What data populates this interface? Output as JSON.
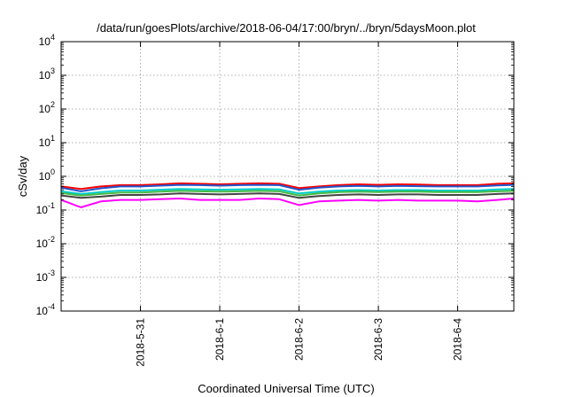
{
  "chart_data": {
    "type": "line",
    "title": "/data/run/goesPlots/archive/2018-06-04/17:00/bryn/../bryn/5daysMoon.plot",
    "xlabel": "Coordinated Universal Time (UTC)",
    "ylabel": "cSv/day",
    "y_scale": "log",
    "ylim": [
      0.0001,
      10000
    ],
    "y_ticks": [
      {
        "base": "10",
        "exp": "-4",
        "value": 0.0001
      },
      {
        "base": "10",
        "exp": "-3",
        "value": 0.001
      },
      {
        "base": "10",
        "exp": "-2",
        "value": 0.01
      },
      {
        "base": "10",
        "exp": "-1",
        "value": 0.1
      },
      {
        "base": "10",
        "exp": "0",
        "value": 1
      },
      {
        "base": "10",
        "exp": "1",
        "value": 10
      },
      {
        "base": "10",
        "exp": "2",
        "value": 100
      },
      {
        "base": "10",
        "exp": "3",
        "value": 1000
      },
      {
        "base": "10",
        "exp": "4",
        "value": 10000
      }
    ],
    "xlim": [
      "2018-05-30T00:00",
      "2018-06-04T17:00"
    ],
    "x_ticks": [
      "2018-5-31",
      "2018-6-1",
      "2018-6-2",
      "2018-6-3",
      "2018-6-4"
    ],
    "grid": true,
    "x": [
      "2018-05-30T00:00",
      "2018-05-30T06:00",
      "2018-05-30T12:00",
      "2018-05-30T18:00",
      "2018-05-31T00:00",
      "2018-05-31T06:00",
      "2018-05-31T12:00",
      "2018-05-31T18:00",
      "2018-06-01T00:00",
      "2018-06-01T06:00",
      "2018-06-01T12:00",
      "2018-06-01T18:00",
      "2018-06-02T00:00",
      "2018-06-02T06:00",
      "2018-06-02T12:00",
      "2018-06-02T18:00",
      "2018-06-03T00:00",
      "2018-06-03T06:00",
      "2018-06-03T12:00",
      "2018-06-03T18:00",
      "2018-06-04T00:00",
      "2018-06-04T06:00",
      "2018-06-04T12:00",
      "2018-06-04T17:00"
    ],
    "series": [
      {
        "color": "#ff0000",
        "values": [
          0.5,
          0.42,
          0.5,
          0.55,
          0.55,
          0.58,
          0.62,
          0.6,
          0.58,
          0.6,
          0.62,
          0.6,
          0.45,
          0.5,
          0.55,
          0.58,
          0.56,
          0.58,
          0.57,
          0.55,
          0.55,
          0.55,
          0.6,
          0.62
        ]
      },
      {
        "color": "#2255cc",
        "values": [
          0.46,
          0.36,
          0.44,
          0.5,
          0.5,
          0.53,
          0.56,
          0.55,
          0.53,
          0.55,
          0.56,
          0.55,
          0.4,
          0.46,
          0.5,
          0.52,
          0.5,
          0.52,
          0.51,
          0.5,
          0.5,
          0.5,
          0.54,
          0.56
        ]
      },
      {
        "color": "#00cccc",
        "values": [
          0.36,
          0.3,
          0.34,
          0.38,
          0.38,
          0.4,
          0.42,
          0.41,
          0.4,
          0.41,
          0.42,
          0.41,
          0.31,
          0.35,
          0.38,
          0.39,
          0.38,
          0.39,
          0.39,
          0.38,
          0.38,
          0.38,
          0.41,
          0.42
        ]
      },
      {
        "color": "#44bb44",
        "values": [
          0.32,
          0.27,
          0.3,
          0.33,
          0.33,
          0.35,
          0.37,
          0.36,
          0.35,
          0.36,
          0.37,
          0.36,
          0.27,
          0.31,
          0.34,
          0.35,
          0.34,
          0.35,
          0.35,
          0.34,
          0.34,
          0.34,
          0.36,
          0.37
        ]
      },
      {
        "color": "#444444",
        "values": [
          0.27,
          0.23,
          0.25,
          0.28,
          0.28,
          0.29,
          0.31,
          0.3,
          0.29,
          0.3,
          0.31,
          0.3,
          0.23,
          0.26,
          0.28,
          0.29,
          0.28,
          0.29,
          0.29,
          0.28,
          0.28,
          0.28,
          0.3,
          0.31
        ]
      },
      {
        "color": "#ff00ff",
        "values": [
          0.2,
          0.12,
          0.18,
          0.2,
          0.2,
          0.21,
          0.22,
          0.2,
          0.2,
          0.2,
          0.22,
          0.21,
          0.14,
          0.18,
          0.19,
          0.2,
          0.19,
          0.2,
          0.19,
          0.19,
          0.19,
          0.18,
          0.2,
          0.22
        ]
      }
    ]
  }
}
